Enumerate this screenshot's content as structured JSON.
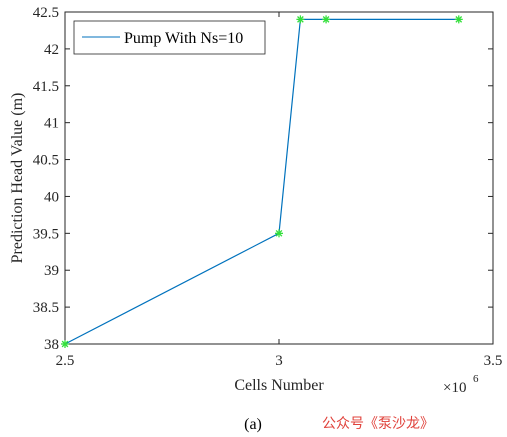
{
  "chart_data": {
    "type": "line",
    "xlabel": "Cells Number",
    "ylabel": "Prediction Head Value (m)",
    "x_exponent_label": "×10",
    "x_exponent_power": "6",
    "xlim": [
      2.5,
      3.5
    ],
    "ylim": [
      38,
      42.5
    ],
    "xticks": [
      2.5,
      3,
      3.5
    ],
    "xtick_labels": [
      "2.5",
      "3",
      "3.5"
    ],
    "yticks": [
      38,
      38.5,
      39,
      39.5,
      40,
      40.5,
      41,
      41.5,
      42,
      42.5
    ],
    "ytick_labels": [
      "38",
      "38.5",
      "39",
      "39.5",
      "40",
      "40.5",
      "41",
      "41.5",
      "42",
      "42.5"
    ],
    "grid": false,
    "legend_position": "top-left",
    "series": [
      {
        "name": "Pump With Ns=10",
        "line_color": "#0072BD",
        "marker_color": "#33e03a",
        "marker": "asterisk",
        "x": [
          2.5,
          3.0,
          3.05,
          3.11,
          3.42
        ],
        "y": [
          38.0,
          39.5,
          42.4,
          42.4,
          42.4
        ]
      }
    ]
  },
  "caption": "(a)",
  "watermark": {
    "text": "公众号《泵沙龙》",
    "color": "#e0413a"
  }
}
